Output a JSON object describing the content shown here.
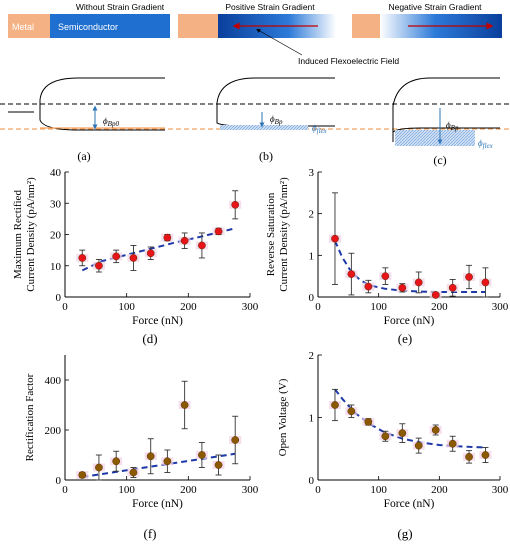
{
  "diagram": {
    "labels": {
      "without_gradient": "Without Strain Gradient",
      "metal": "Metal",
      "semiconductor": "Semiconductor",
      "positive_gradient": "Positive Strain Gradient",
      "negative_gradient": "Negative  Strain Gradient",
      "induced_field": "Induced Flexoelectric Field",
      "phi_bp0": "ϕBp0",
      "phi_bp": "ϕBp",
      "phi_flex": "ϕflex"
    },
    "colors": {
      "metal": "#f4b183",
      "semiconductor": "#1f6fd0",
      "dashed_orange": "#f4a460",
      "phi_blue": "#2e75b6",
      "arrow_red": "#c00000"
    },
    "panel_labels": [
      "(a)",
      "(b)",
      "(c)"
    ]
  },
  "chart_data": [
    {
      "id": "d",
      "type": "scatter",
      "label": "(d)",
      "xlabel": "Force (nN)",
      "ylabel_lines": [
        "Maximum Rectified",
        "Current Density (pA/nm²)"
      ],
      "xlim": [
        0,
        300
      ],
      "ylim": [
        0,
        40
      ],
      "xticks": [
        0,
        100,
        200,
        300
      ],
      "yticks": [
        0,
        10,
        20,
        30,
        40
      ],
      "x": [
        28,
        55,
        83,
        111,
        139,
        166,
        194,
        222,
        249,
        276
      ],
      "y": [
        12.5,
        10,
        13,
        12.5,
        14,
        19,
        18,
        16.5,
        21,
        29.5
      ],
      "err": [
        2.5,
        2,
        2,
        4,
        2,
        1,
        2.5,
        4,
        1,
        4.5
      ],
      "fit": {
        "x": [
          28,
          60,
          100,
          140,
          180,
          220,
          276
        ],
        "y": [
          8.5,
          11.5,
          13.5,
          15.5,
          17.5,
          19.3,
          22
        ]
      },
      "marker_color": "#e8141a"
    },
    {
      "id": "e",
      "type": "scatter",
      "label": "(e)",
      "xlabel": "Force (nN)",
      "ylabel_lines": [
        "Reverse Saturation",
        "Current Density (pA/nm²)"
      ],
      "xlim": [
        0,
        300
      ],
      "ylim": [
        0,
        3
      ],
      "xticks": [
        0,
        100,
        200,
        300
      ],
      "yticks": [
        0,
        1,
        2,
        3
      ],
      "x": [
        28,
        55,
        83,
        111,
        139,
        166,
        194,
        222,
        249,
        276
      ],
      "y": [
        1.4,
        0.55,
        0.25,
        0.5,
        0.22,
        0.35,
        0.05,
        0.22,
        0.48,
        0.35
      ],
      "err": [
        1.1,
        0.5,
        0.15,
        0.2,
        0.1,
        0.25,
        0.05,
        0.2,
        0.28,
        0.35
      ],
      "fit": {
        "x": [
          28,
          40,
          55,
          70,
          85,
          110,
          140,
          170,
          200,
          230,
          276
        ],
        "y": [
          1.35,
          0.95,
          0.6,
          0.4,
          0.28,
          0.2,
          0.15,
          0.13,
          0.12,
          0.12,
          0.12
        ]
      },
      "marker_color": "#e8141a"
    },
    {
      "id": "f",
      "type": "scatter",
      "label": "(f)",
      "xlabel": "Force (nN)",
      "ylabel_lines": [
        "Rectification Factor"
      ],
      "xlim": [
        0,
        300
      ],
      "ylim": [
        0,
        500
      ],
      "xticks": [
        0,
        100,
        200,
        300
      ],
      "yticks": [
        0,
        200,
        400
      ],
      "x": [
        28,
        55,
        83,
        111,
        139,
        166,
        194,
        222,
        249,
        276
      ],
      "y": [
        20,
        50,
        75,
        30,
        95,
        75,
        300,
        100,
        60,
        160
      ],
      "err": [
        10,
        50,
        40,
        20,
        70,
        45,
        95,
        50,
        40,
        95
      ],
      "fit": {
        "x": [
          28,
          276
        ],
        "y": [
          12,
          105
        ]
      },
      "marker_color": "#8b5a00"
    },
    {
      "id": "g",
      "type": "scatter",
      "label": "(g)",
      "xlabel": "Force (nN)",
      "ylabel_lines": [
        "Open Voltage (V)"
      ],
      "xlim": [
        0,
        300
      ],
      "ylim": [
        0,
        2
      ],
      "xticks": [
        0,
        100,
        200,
        300
      ],
      "yticks": [
        0,
        1,
        2
      ],
      "x": [
        28,
        55,
        83,
        111,
        139,
        166,
        194,
        222,
        249,
        276
      ],
      "y": [
        1.2,
        1.1,
        0.93,
        0.7,
        0.75,
        0.55,
        0.8,
        0.58,
        0.37,
        0.4
      ],
      "err": [
        0.25,
        0.1,
        0.05,
        0.08,
        0.15,
        0.12,
        0.08,
        0.12,
        0.1,
        0.12
      ],
      "fit": {
        "x": [
          28,
          40,
          60,
          85,
          110,
          140,
          170,
          200,
          230,
          276
        ],
        "y": [
          1.45,
          1.3,
          1.08,
          0.9,
          0.76,
          0.66,
          0.6,
          0.56,
          0.54,
          0.52
        ]
      },
      "marker_color": "#8b5a00"
    }
  ]
}
